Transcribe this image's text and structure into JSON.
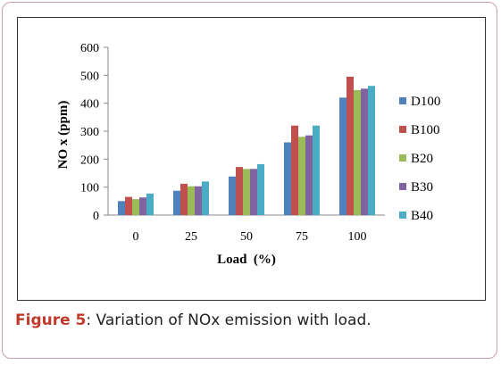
{
  "chart_data": {
    "type": "bar",
    "categories": [
      "0",
      "25",
      "50",
      "75",
      "100"
    ],
    "series": [
      {
        "name": "D100",
        "values": [
          50,
          87,
          138,
          260,
          420
        ]
      },
      {
        "name": "B100",
        "values": [
          65,
          112,
          172,
          320,
          495
        ]
      },
      {
        "name": "B20",
        "values": [
          57,
          103,
          165,
          280,
          447
        ]
      },
      {
        "name": "B30",
        "values": [
          63,
          103,
          165,
          285,
          452
        ]
      },
      {
        "name": "B40",
        "values": [
          77,
          120,
          182,
          320,
          462
        ]
      }
    ],
    "colors": [
      "#4f81bd",
      "#c0504d",
      "#9bbb59",
      "#8064a2",
      "#4bacc6"
    ],
    "title": "",
    "xlabel": "Load  (%)",
    "ylabel": "NO x  (ppm)",
    "ylim": [
      0,
      600
    ],
    "yticks": [
      "0",
      "100",
      "200",
      "300",
      "400",
      "500",
      "600"
    ],
    "grid": false,
    "legend_position": "right"
  },
  "caption": {
    "label": "Figure 5",
    "text": ": Variation of NOx emission with load."
  }
}
